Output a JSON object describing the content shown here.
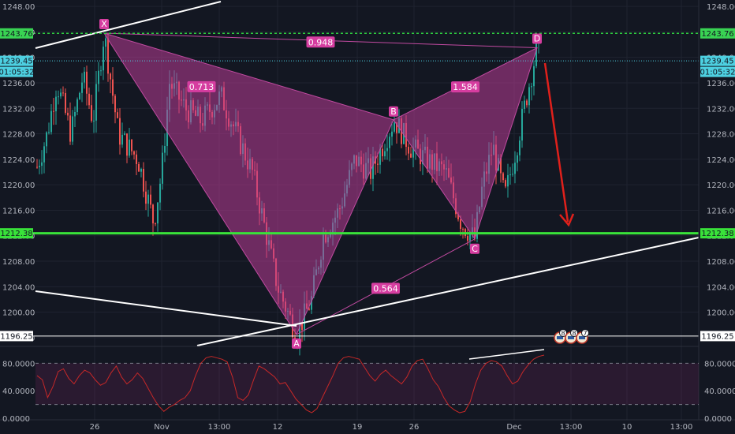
{
  "chart_data": {
    "type": "candlestick",
    "price_axis": {
      "ticks": [
        "1248.00",
        "1244.00",
        "1240.00",
        "1236.00",
        "1232.00",
        "1228.00",
        "1224.00",
        "1220.00",
        "1216.00",
        "1212.00",
        "1208.00",
        "1204.00",
        "1200.00",
        "1196.00"
      ],
      "range": [
        1195,
        1249
      ]
    },
    "time_axis": {
      "ticks": [
        "26",
        "Nov",
        "13:00",
        "12",
        "19",
        "26",
        "Dec",
        "13:00",
        "10",
        "13:00"
      ]
    },
    "price_tags": {
      "resistance": "1243.76",
      "current": "1239.45",
      "countdown": "01:05:32",
      "support": "1212.38",
      "low": "1196.25"
    },
    "pattern": {
      "points": [
        {
          "label": "X",
          "price": 1243.8
        },
        {
          "label": "A",
          "price": 1196.5
        },
        {
          "label": "B",
          "price": 1230.2
        },
        {
          "label": "C",
          "price": 1211.5
        },
        {
          "label": "D",
          "price": 1241.5
        }
      ],
      "ratios": {
        "xb": "0.713",
        "xd": "0.948",
        "ac": "0.564",
        "bd": "1.584"
      }
    },
    "oscillator": {
      "ticks": [
        "80.0000",
        "40.0000",
        "0.0000"
      ],
      "range": [
        0,
        100
      ],
      "levels": [
        80,
        20
      ],
      "values": [
        62,
        56,
        30,
        46,
        68,
        72,
        58,
        50,
        62,
        70,
        66,
        56,
        48,
        52,
        66,
        76,
        60,
        50,
        56,
        66,
        58,
        44,
        30,
        18,
        10,
        16,
        20,
        26,
        30,
        40,
        62,
        80,
        88,
        90,
        88,
        86,
        82,
        60,
        30,
        26,
        34,
        56,
        76,
        72,
        66,
        60,
        50,
        52,
        40,
        28,
        20,
        12,
        8,
        14,
        30,
        46,
        62,
        80,
        88,
        90,
        88,
        86,
        74,
        62,
        54,
        64,
        70,
        62,
        56,
        50,
        60,
        76,
        84,
        86,
        72,
        56,
        46,
        30,
        18,
        12,
        8,
        10,
        24,
        50,
        70,
        80,
        84,
        82,
        76,
        62,
        50,
        54,
        68,
        78,
        86,
        90,
        92
      ]
    },
    "events": [
      "8",
      "8",
      "7"
    ],
    "grid": true
  }
}
